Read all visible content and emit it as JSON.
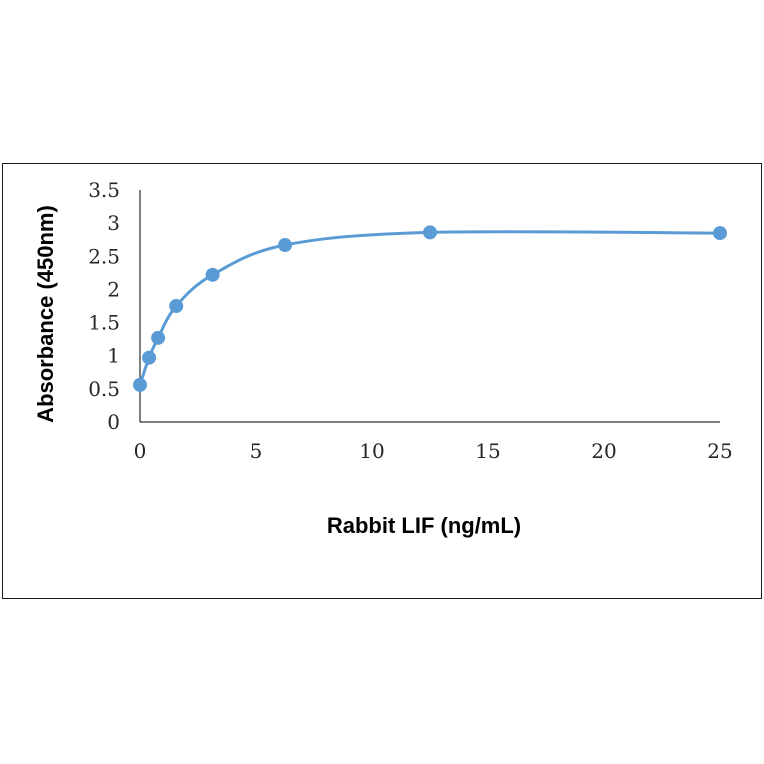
{
  "chart_data": {
    "type": "scatter",
    "title": "",
    "xlabel": "Rabbit LIF (ng/mL)",
    "ylabel": "Absorbance (450nm)",
    "xlim": [
      0,
      25
    ],
    "ylim": [
      0,
      3.5
    ],
    "x_ticks": [
      "0",
      "5",
      "10",
      "15",
      "20",
      "25"
    ],
    "y_ticks": [
      "0",
      "0.5",
      "1",
      "1.5",
      "2",
      "2.5",
      "3",
      "3.5"
    ],
    "grid": false,
    "legend": "none",
    "smooth_line": true,
    "series": [
      {
        "color": "#5b9bd5",
        "x": [
          0,
          0.39,
          0.78,
          1.56,
          3.13,
          6.25,
          12.5,
          25
        ],
        "y": [
          0.56,
          0.97,
          1.27,
          1.75,
          2.22,
          2.67,
          2.86,
          2.85
        ]
      }
    ]
  }
}
